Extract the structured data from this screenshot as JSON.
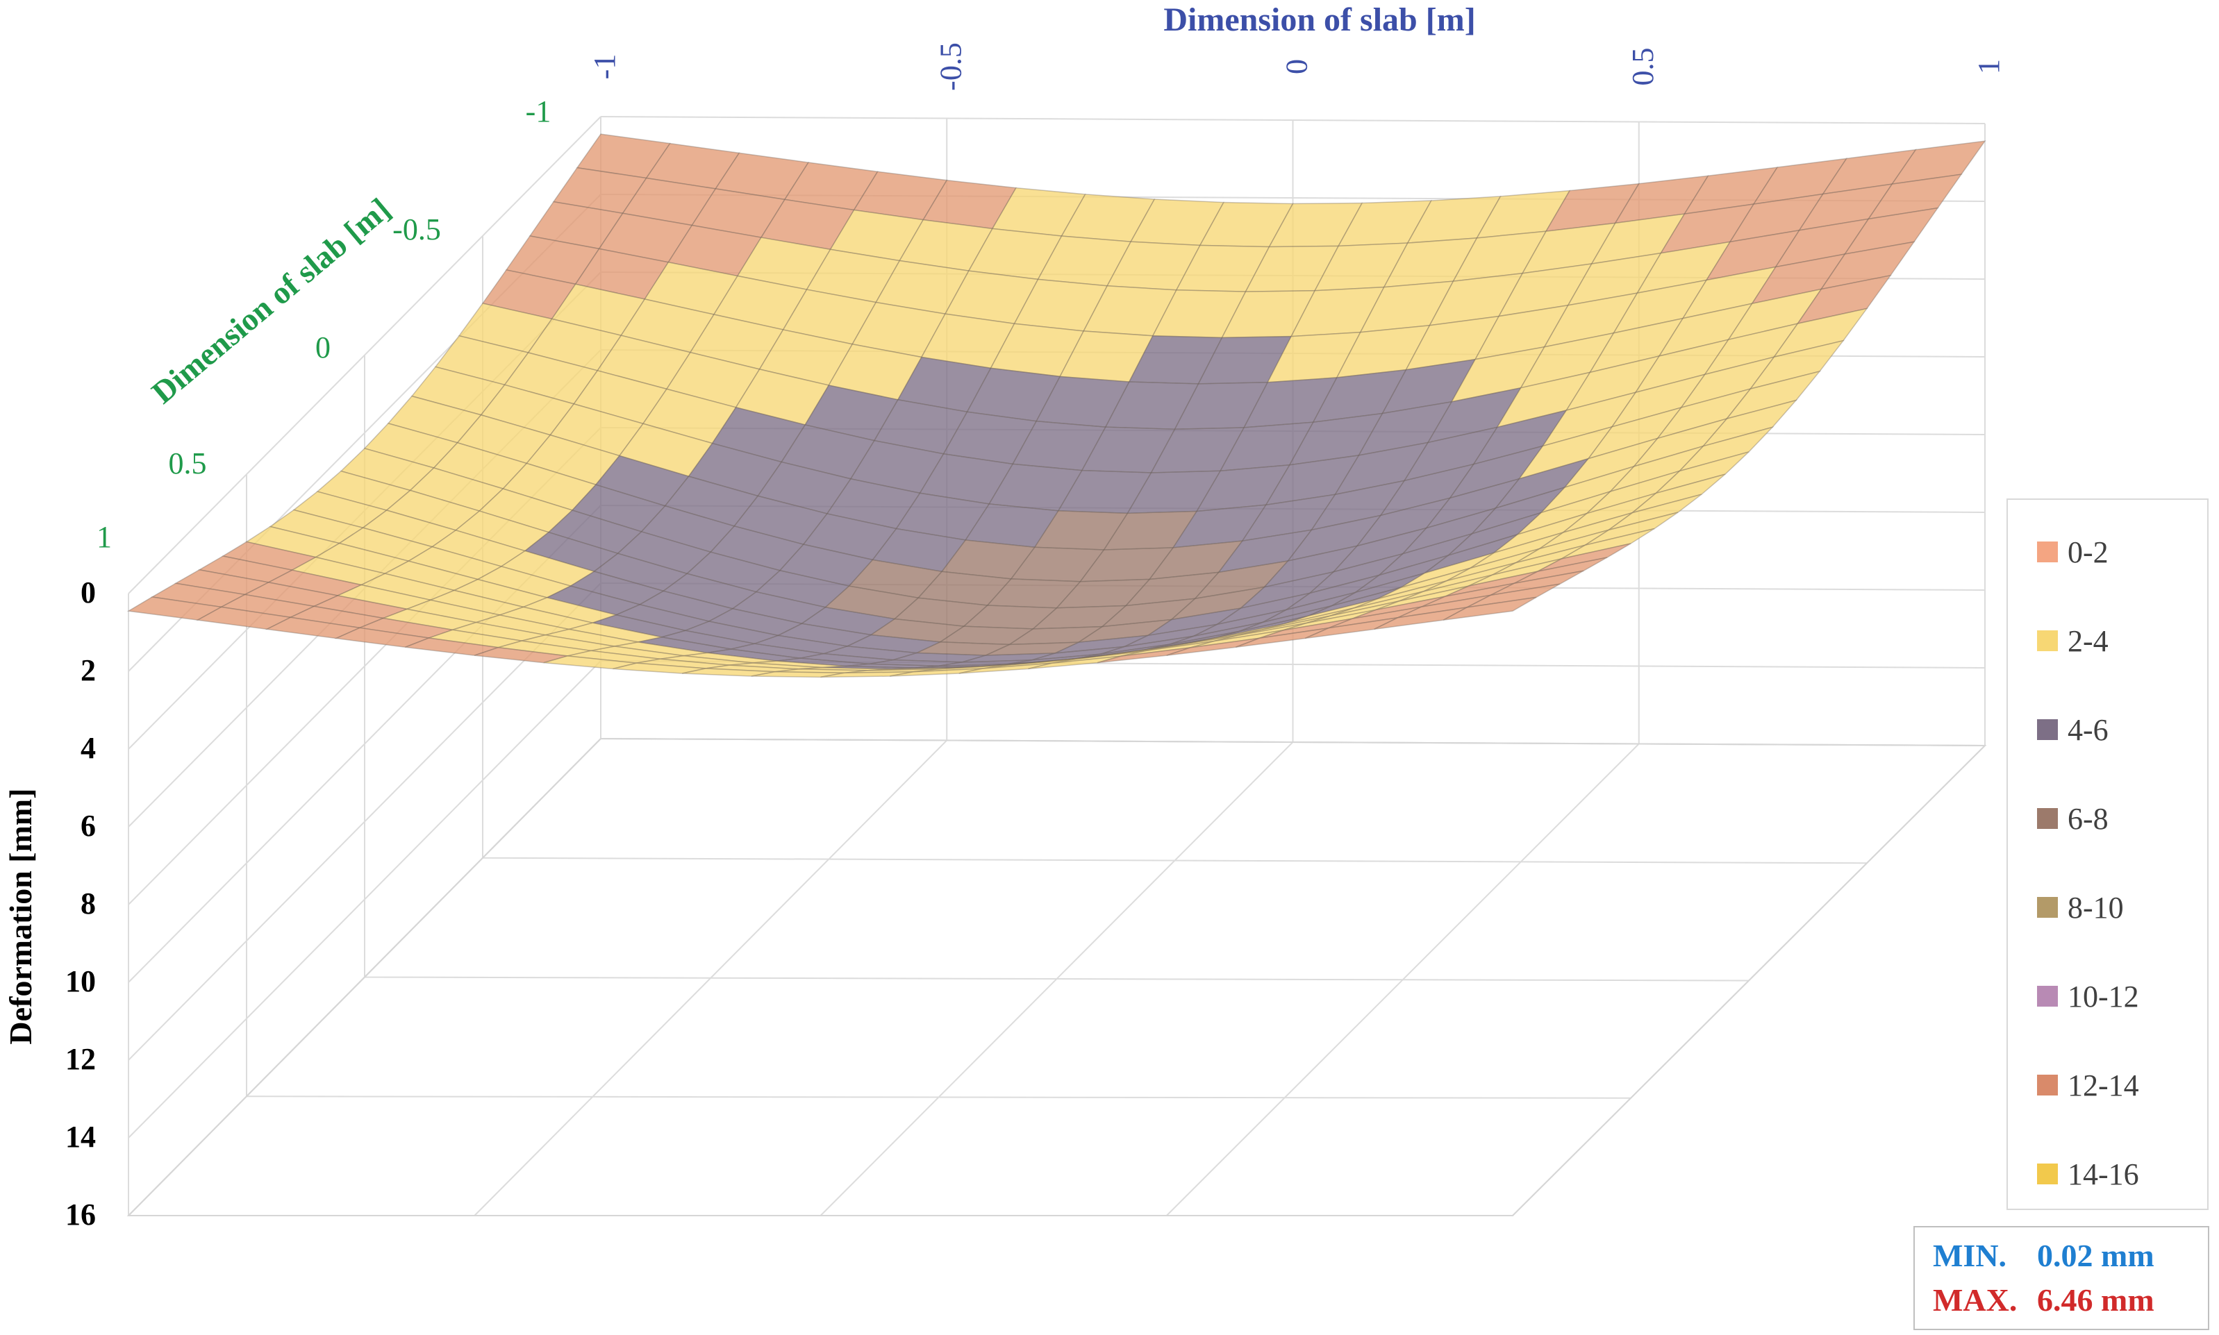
{
  "chart_data": {
    "type": "surface",
    "title": "",
    "x_axis": {
      "label": "Dimension of slab [m]",
      "ticks": [
        "-1",
        "-0.5",
        "0",
        "0.5",
        "1"
      ],
      "range": [
        -1,
        1
      ],
      "color": "#3c4fa8"
    },
    "y_axis": {
      "label": "Dimension of slab [m]",
      "ticks": [
        "-1",
        "-0.5",
        "0",
        "0.5",
        "1"
      ],
      "range": [
        -1,
        1
      ],
      "color": "#1f9a4a"
    },
    "z_axis": {
      "label": "Deformation [mm]",
      "ticks": [
        "0",
        "2",
        "4",
        "6",
        "8",
        "10",
        "12",
        "14",
        "16"
      ],
      "range": [
        0,
        16
      ],
      "inverted": true,
      "color": "#000000"
    },
    "grid": true,
    "legend_position": "right",
    "legend": [
      {
        "label": "0-2",
        "color": "#f4a582"
      },
      {
        "label": "2-4",
        "color": "#f7d774"
      },
      {
        "label": "4-6",
        "color": "#7d6f86"
      },
      {
        "label": "6-8",
        "color": "#9c7a6b"
      },
      {
        "label": "8-10",
        "color": "#b39a68"
      },
      {
        "label": "10-12",
        "color": "#b88ab4"
      },
      {
        "label": "12-14",
        "color": "#d98a6a"
      },
      {
        "label": "14-16",
        "color": "#f2c94c"
      }
    ],
    "min": {
      "label": "MIN.",
      "value": 0.02,
      "text": "0.02 mm",
      "color": "#1f7fd1"
    },
    "max": {
      "label": "MAX.",
      "value": 6.46,
      "text": "6.46 mm",
      "color": "#d12a2a"
    }
  }
}
